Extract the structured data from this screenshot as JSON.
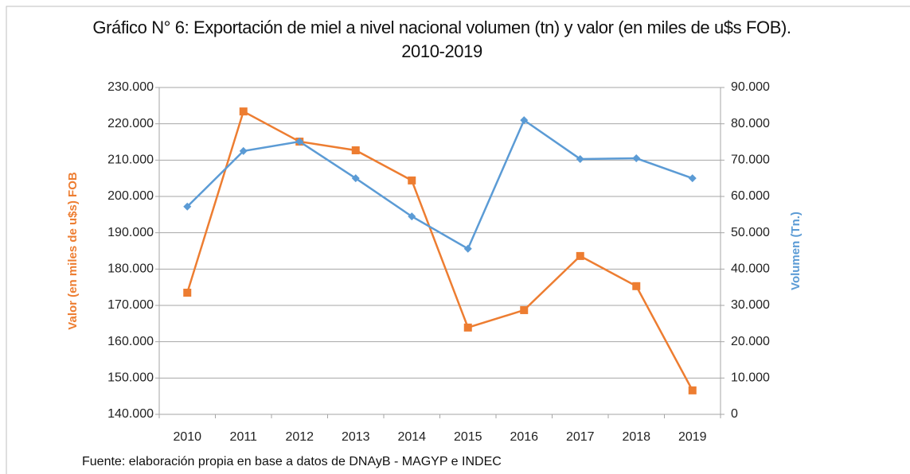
{
  "chart_data": {
    "type": "line",
    "title": "Gráfico N° 6: Exportación de miel a nivel nacional volumen (tn) y valor (en miles de u$s FOB). 2010-2019",
    "y_label": "Valor (en miles de u$s) FOB",
    "y2_label": "Volumen (Tn.)",
    "source": "Fuente: elaboración  propia en base a datos de DNAyB - MAGYP e INDEC",
    "categories": [
      "2010",
      "2011",
      "2012",
      "2013",
      "2014",
      "2015",
      "2016",
      "2017",
      "2018",
      "2019"
    ],
    "series": [
      {
        "name": "Valor",
        "color": "#ed7d31",
        "marker": "square",
        "values": [
          173500,
          223400,
          215100,
          212700,
          204400,
          163900,
          168700,
          183600,
          175300,
          146600
        ]
      },
      {
        "name": "Volumen",
        "color": "#5b9bd5",
        "marker": "diamond",
        "axis": "y2",
        "values": [
          57200,
          72500,
          75100,
          65000,
          54500,
          45600,
          81000,
          70300,
          70500,
          65000
        ]
      }
    ],
    "ylim": [
      140000,
      230000
    ],
    "yticks": [
      {
        "value": 140000,
        "label": "140.000"
      },
      {
        "value": 150000,
        "label": "150.000"
      },
      {
        "value": 160000,
        "label": "160.000"
      },
      {
        "value": 170000,
        "label": "170.000"
      },
      {
        "value": 180000,
        "label": "180.000"
      },
      {
        "value": 190000,
        "label": "190.000"
      },
      {
        "value": 200000,
        "label": "200.000"
      },
      {
        "value": 210000,
        "label": "210.000"
      },
      {
        "value": 220000,
        "label": "220.000"
      },
      {
        "value": 230000,
        "label": "230.000"
      }
    ],
    "y2lim": [
      0,
      90000
    ],
    "y2ticks": [
      0,
      {
        "value": 10000,
        "label": "10.000"
      },
      {
        "value": 20000,
        "label": "20.000"
      },
      {
        "value": 30000,
        "label": "30.000"
      },
      {
        "value": 40000,
        "label": "40.000"
      },
      {
        "value": 50000,
        "label": "50.000"
      },
      {
        "value": 60000,
        "label": "60.000"
      },
      {
        "value": 70000,
        "label": "70.000"
      },
      {
        "value": 80000,
        "label": "80.000"
      },
      {
        "value": 90000,
        "label": "90.000"
      }
    ],
    "grid": true
  }
}
